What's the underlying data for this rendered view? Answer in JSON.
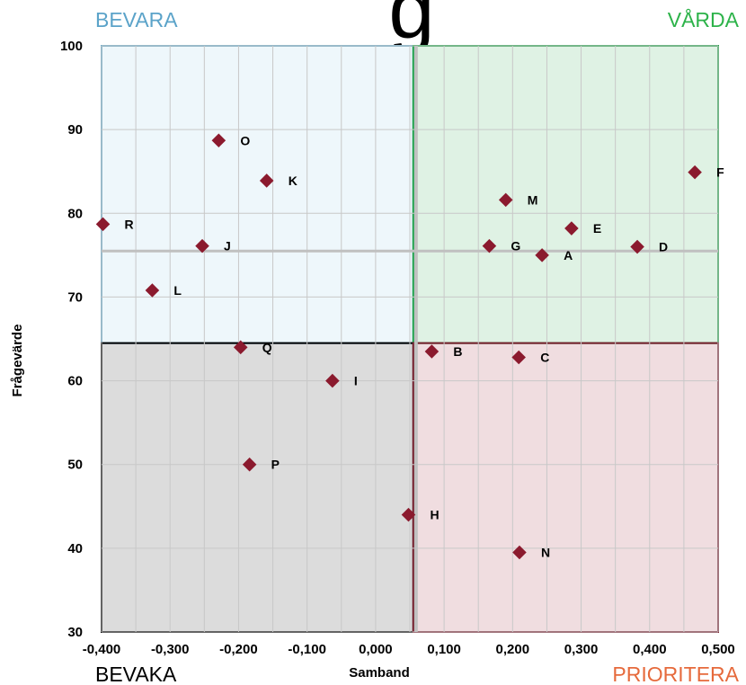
{
  "chart_data": {
    "type": "scatter",
    "title": "g",
    "xlabel": "Samband",
    "ylabel": "Frågevärde",
    "xlim": [
      -0.4,
      0.5
    ],
    "ylim": [
      30,
      100
    ],
    "x_ticks": [
      "-0,400",
      "-0,300",
      "-0,200",
      "-0,100",
      "0,000",
      "0,100",
      "0,200",
      "0,300",
      "0,400",
      "0,500"
    ],
    "y_ticks": [
      "30",
      "40",
      "50",
      "60",
      "70",
      "80",
      "90",
      "100"
    ],
    "x_split": 0.055,
    "y_split": 64.5,
    "grid": true,
    "quadrants": {
      "top_left": {
        "label": "BEVARA",
        "color": "#5ba3c9",
        "fill": "#eef7fb",
        "border": "#6aaccc"
      },
      "top_right": {
        "label": "VÅRDA",
        "color": "#2db34a",
        "fill": "#dff2e4",
        "border": "#1fa348"
      },
      "bottom_left": {
        "label": "BEVAKA",
        "color": "#000000",
        "fill": "#dcdcdc",
        "border": "#000000"
      },
      "bottom_right": {
        "label": "PRIORITERA",
        "color": "#e66a3c",
        "fill": "#f0dde0",
        "border": "#7a1f2f"
      }
    },
    "marker_color": "#8b1a2e",
    "points": [
      {
        "label": "A",
        "x": 0.243,
        "y": 75.0
      },
      {
        "label": "B",
        "x": 0.082,
        "y": 63.5
      },
      {
        "label": "C",
        "x": 0.209,
        "y": 62.8
      },
      {
        "label": "D",
        "x": 0.382,
        "y": 76.0
      },
      {
        "label": "E",
        "x": 0.286,
        "y": 78.2
      },
      {
        "label": "F",
        "x": 0.466,
        "y": 84.9
      },
      {
        "label": "G",
        "x": 0.166,
        "y": 76.1
      },
      {
        "label": "H",
        "x": 0.048,
        "y": 44.0
      },
      {
        "label": "I",
        "x": -0.063,
        "y": 60.0
      },
      {
        "label": "J",
        "x": -0.253,
        "y": 76.1
      },
      {
        "label": "K",
        "x": -0.159,
        "y": 83.9
      },
      {
        "label": "L",
        "x": -0.326,
        "y": 70.8
      },
      {
        "label": "M",
        "x": 0.19,
        "y": 81.6
      },
      {
        "label": "N",
        "x": 0.21,
        "y": 39.5
      },
      {
        "label": "O",
        "x": -0.229,
        "y": 88.7
      },
      {
        "label": "P",
        "x": -0.184,
        "y": 50.0
      },
      {
        "label": "Q",
        "x": -0.197,
        "y": 64.0
      },
      {
        "label": "R",
        "x": -0.398,
        "y": 78.7
      }
    ]
  }
}
